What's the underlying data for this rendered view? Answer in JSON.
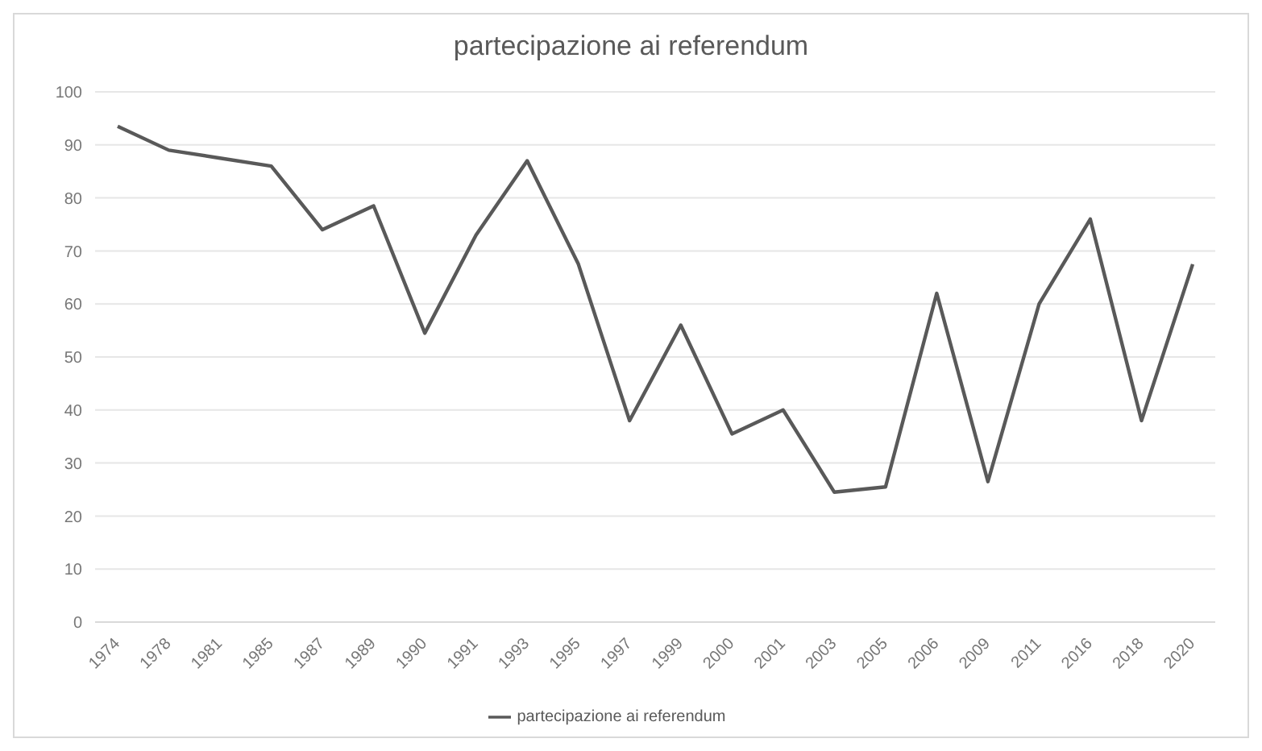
{
  "chart_data": {
    "type": "line",
    "title": "partecipazione ai referendum",
    "categories": [
      "1974",
      "1978",
      "1981",
      "1985",
      "1987",
      "1989",
      "1990",
      "1991",
      "1993",
      "1995",
      "1997",
      "1999",
      "2000",
      "2001",
      "2003",
      "2005",
      "2006",
      "2009",
      "2011",
      "2016",
      "2018",
      "2020"
    ],
    "series": [
      {
        "name": "partecipazione ai referendum",
        "color": "#595959",
        "values": [
          93.5,
          89,
          87.5,
          86,
          74,
          78.5,
          54.5,
          73,
          87,
          67.5,
          38,
          56,
          35.5,
          40,
          24.5,
          25.5,
          62,
          26.5,
          60,
          76,
          38,
          67.5
        ]
      }
    ],
    "ylim": [
      0,
      100
    ],
    "yticks": [
      0,
      10,
      20,
      30,
      40,
      50,
      60,
      70,
      80,
      90,
      100
    ],
    "grid": "y",
    "legend": "bottom",
    "marker": "none",
    "line_style": "solid"
  }
}
